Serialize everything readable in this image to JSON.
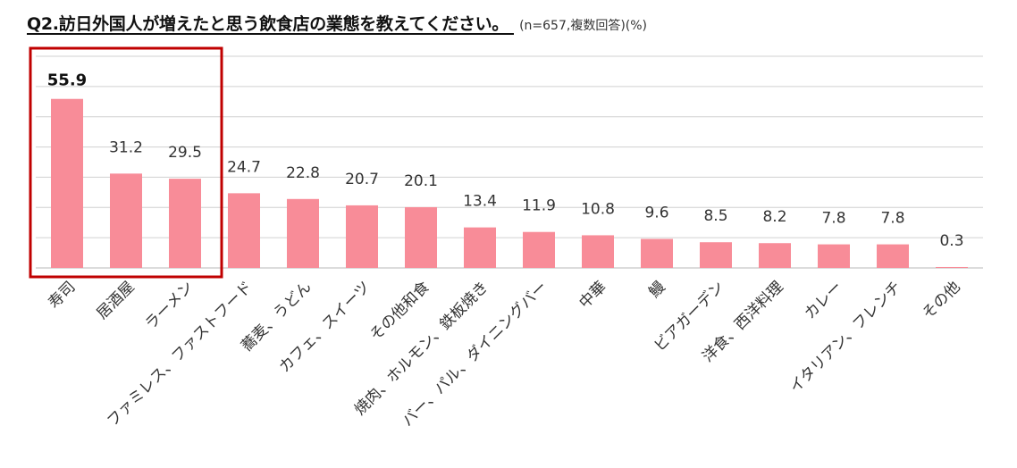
{
  "header": {
    "title": "Q2.訪日外国人が増えたと思う飲食店の業態を教えてください。",
    "note": "(n=657,複数回答)(%)"
  },
  "colors": {
    "bar": "#F88C98",
    "highlight_box": "#C00000",
    "gridline": "#D0D0D0"
  },
  "chart_data": {
    "type": "bar",
    "title": "Q2.訪日外国人が増えたと思う飲食店の業態を教えてください。",
    "xlabel": "",
    "ylabel": "",
    "ylim": [
      0,
      70
    ],
    "grid": true,
    "categories": [
      "寿司",
      "居酒屋",
      "ラーメン",
      "ファミレス、ファストフード",
      "蕎麦、うどん",
      "カフェ、スイーツ",
      "その他和食",
      "焼肉、ホルモン、鉄板焼き",
      "バー、パル、ダイニングバー",
      "中華",
      "鰻",
      "ビアガーデン",
      "洋食、西洋料理",
      "カレー",
      "イタリアン、フレンチ",
      "その他"
    ],
    "values": [
      55.9,
      31.2,
      29.5,
      24.7,
      22.8,
      20.7,
      20.1,
      13.4,
      11.9,
      10.8,
      9.6,
      8.5,
      8.2,
      7.8,
      7.8,
      0.3
    ],
    "value_labels": [
      "55.9",
      "31.2",
      "29.5",
      "24.7",
      "22.8",
      "20.7",
      "20.1",
      "13.4",
      "11.9",
      "10.8",
      "9.6",
      "8.5",
      "8.2",
      "7.8",
      "7.8",
      "0.3"
    ],
    "highlighted_categories": [
      "寿司",
      "居酒屋",
      "ラーメン"
    ]
  }
}
